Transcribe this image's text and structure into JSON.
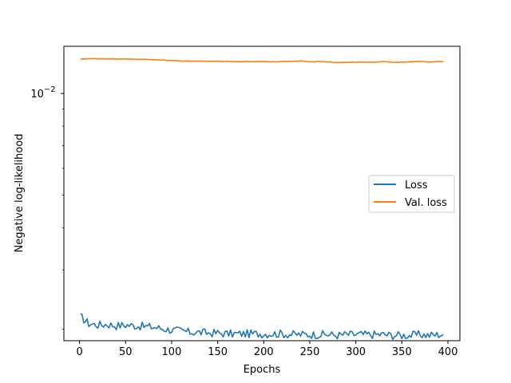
{
  "chart_data": {
    "type": "line",
    "xlabel": "Epochs",
    "ylabel": "Negative log-likelihood",
    "xlim": [
      -17,
      413
    ],
    "ylim": [
      0.00185,
      0.0138
    ],
    "yscale": "log",
    "x_ticks": [
      0,
      50,
      100,
      150,
      200,
      250,
      300,
      350,
      400
    ],
    "x_tick_labels": [
      "0",
      "50",
      "100",
      "150",
      "200",
      "250",
      "300",
      "350",
      "400"
    ],
    "y_major_ticks": [
      0.01
    ],
    "y_tick_label_base": "10",
    "y_tick_label_exp": "−2",
    "y_minor_ticks": [
      0.002,
      0.003,
      0.004,
      0.005,
      0.006,
      0.007,
      0.008,
      0.009
    ],
    "legend_position": "center-right",
    "series": [
      {
        "name": "Loss",
        "color": "#1f77b4",
        "x": [
          1,
          10,
          20,
          30,
          40,
          50,
          60,
          70,
          80,
          90,
          100,
          110,
          120,
          130,
          140,
          150,
          160,
          170,
          180,
          190,
          200,
          210,
          220,
          230,
          240,
          250,
          260,
          270,
          280,
          290,
          300,
          310,
          320,
          330,
          340,
          350,
          360,
          370,
          380,
          390,
          395
        ],
        "y": [
          0.00218,
          0.00208,
          0.00206,
          0.00207,
          0.00205,
          0.00206,
          0.00205,
          0.00204,
          0.00203,
          0.00201,
          0.00199,
          0.00198,
          0.00196,
          0.00196,
          0.00195,
          0.00195,
          0.00194,
          0.00194,
          0.00194,
          0.00194,
          0.00194,
          0.00194,
          0.00194,
          0.00193,
          0.00193,
          0.00193,
          0.00193,
          0.00193,
          0.00192,
          0.00193,
          0.00193,
          0.00193,
          0.00193,
          0.00193,
          0.00192,
          0.00192,
          0.00192,
          0.00193,
          0.00192,
          0.00193,
          0.00193
        ]
      },
      {
        "name": "Val. loss",
        "color": "#ff7f0e",
        "x": [
          1,
          10,
          20,
          30,
          40,
          50,
          60,
          70,
          80,
          90,
          100,
          110,
          120,
          130,
          140,
          150,
          160,
          170,
          180,
          190,
          200,
          210,
          220,
          230,
          240,
          250,
          260,
          270,
          280,
          290,
          300,
          310,
          320,
          330,
          340,
          350,
          360,
          370,
          380,
          390,
          395
        ],
        "y": [
          0.01265,
          0.01268,
          0.01268,
          0.01267,
          0.01266,
          0.01265,
          0.01264,
          0.01262,
          0.01259,
          0.01256,
          0.01253,
          0.01249,
          0.01247,
          0.01246,
          0.01245,
          0.01246,
          0.01244,
          0.01243,
          0.01242,
          0.01243,
          0.01243,
          0.01241,
          0.01244,
          0.01245,
          0.01249,
          0.0124,
          0.01244,
          0.01238,
          0.01236,
          0.01237,
          0.01238,
          0.01238,
          0.01237,
          0.01245,
          0.01238,
          0.01238,
          0.0124,
          0.01246,
          0.01239,
          0.01244,
          0.01242
        ]
      }
    ]
  }
}
